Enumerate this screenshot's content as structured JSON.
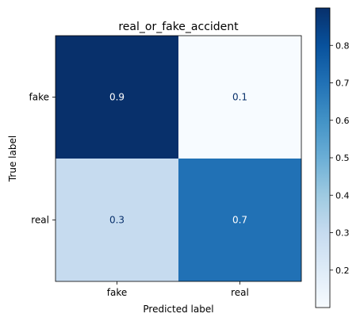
{
  "chart_data": {
    "type": "heatmap",
    "title": "real_or_fake_accident",
    "xlabel": "Predicted label",
    "ylabel": "True label",
    "x_categories": [
      "fake",
      "real"
    ],
    "y_categories": [
      "fake",
      "real"
    ],
    "values": [
      [
        0.9,
        0.1
      ],
      [
        0.3,
        0.7
      ]
    ],
    "value_labels": [
      [
        "0.9",
        "0.1"
      ],
      [
        "0.3",
        "0.7"
      ]
    ],
    "colormap": "Blues",
    "colorbar": {
      "range": [
        0.1,
        0.9
      ],
      "ticks": [
        0.2,
        0.3,
        0.4,
        0.5,
        0.6,
        0.7,
        0.8
      ],
      "tick_labels": [
        "0.2",
        "0.3",
        "0.4",
        "0.5",
        "0.6",
        "0.7",
        "0.8"
      ]
    }
  }
}
